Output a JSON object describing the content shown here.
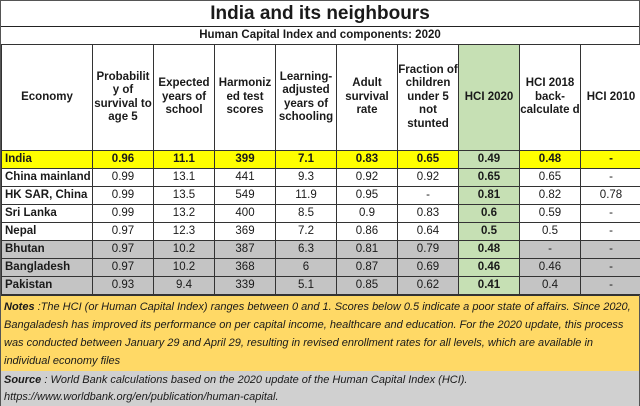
{
  "title": "India and its neighbours",
  "subtitle": "Human Capital Index and components: 2020",
  "colors": {
    "highlight_row": "#ffff00",
    "hci_2020_column": "#c6e0b4",
    "grey_rows": "#c4c4c4",
    "notes_background": "#ffd966",
    "source_background": "#d0d0d0"
  },
  "table": {
    "headers": [
      "Economy",
      "Probabilit y of survival to age 5",
      "Expected years of school",
      "Harmoniz ed test scores",
      "Learning-adjusted years of schooling",
      "Adult survival rate",
      "Fraction of children under 5 not stunted",
      "HCI 2020",
      "HCI 2018 back-calculate d",
      "HCI 2010"
    ],
    "rows": [
      {
        "style": "highlight",
        "cells": [
          "India",
          "0.96",
          "11.1",
          "399",
          "7.1",
          "0.83",
          "0.65",
          "0.49",
          "0.48",
          "-"
        ]
      },
      {
        "style": "white",
        "cells": [
          "China mainland",
          "0.99",
          "13.1",
          "441",
          "9.3",
          "0.92",
          "0.92",
          "0.65",
          "0.65",
          "-"
        ]
      },
      {
        "style": "white",
        "cells": [
          "HK SAR, China",
          "0.99",
          "13.5",
          "549",
          "11.9",
          "0.95",
          "-",
          "0.81",
          "0.82",
          "0.78"
        ]
      },
      {
        "style": "white",
        "cells": [
          "Sri Lanka",
          "0.99",
          "13.2",
          "400",
          "8.5",
          "0.9",
          "0.83",
          "0.6",
          "0.59",
          "-"
        ]
      },
      {
        "style": "white",
        "cells": [
          "Nepal",
          "0.97",
          "12.3",
          "369",
          "7.2",
          "0.86",
          "0.64",
          "0.5",
          "0.5",
          "-"
        ]
      },
      {
        "style": "grey",
        "cells": [
          "Bhutan",
          "0.97",
          "10.2",
          "387",
          "6.3",
          "0.81",
          "0.79",
          "0.48",
          "-",
          "-"
        ]
      },
      {
        "style": "grey",
        "cells": [
          "Bangladesh",
          "0.97",
          "10.2",
          "368",
          "6",
          "0.87",
          "0.69",
          "0.46",
          "0.46",
          "-"
        ]
      },
      {
        "style": "grey",
        "cells": [
          "Pakistan",
          "0.93",
          "9.4",
          "339",
          "5.1",
          "0.85",
          "0.62",
          "0.41",
          "0.4",
          "-"
        ]
      }
    ]
  },
  "notes": {
    "label": "Notes",
    "text": " :The HCI (or Human Capital Index)  ranges between 0 and 1. Scores below 0.5 indicate a poor state of affairs. Since 2020, Bangaladesh has improved its performance on per capital income, healthcare and education.  For the 2020 update, this process was conducted between January 29 and April 29, resulting in revised enrollment rates for all levels, which are available in individual economy files"
  },
  "source": {
    "label": "Source",
    "text": " : World Bank calculations based on the 2020 update of the Human Capital Index (HCI).",
    "url": "https://www.worldbank.org/en/publication/human-capital."
  }
}
